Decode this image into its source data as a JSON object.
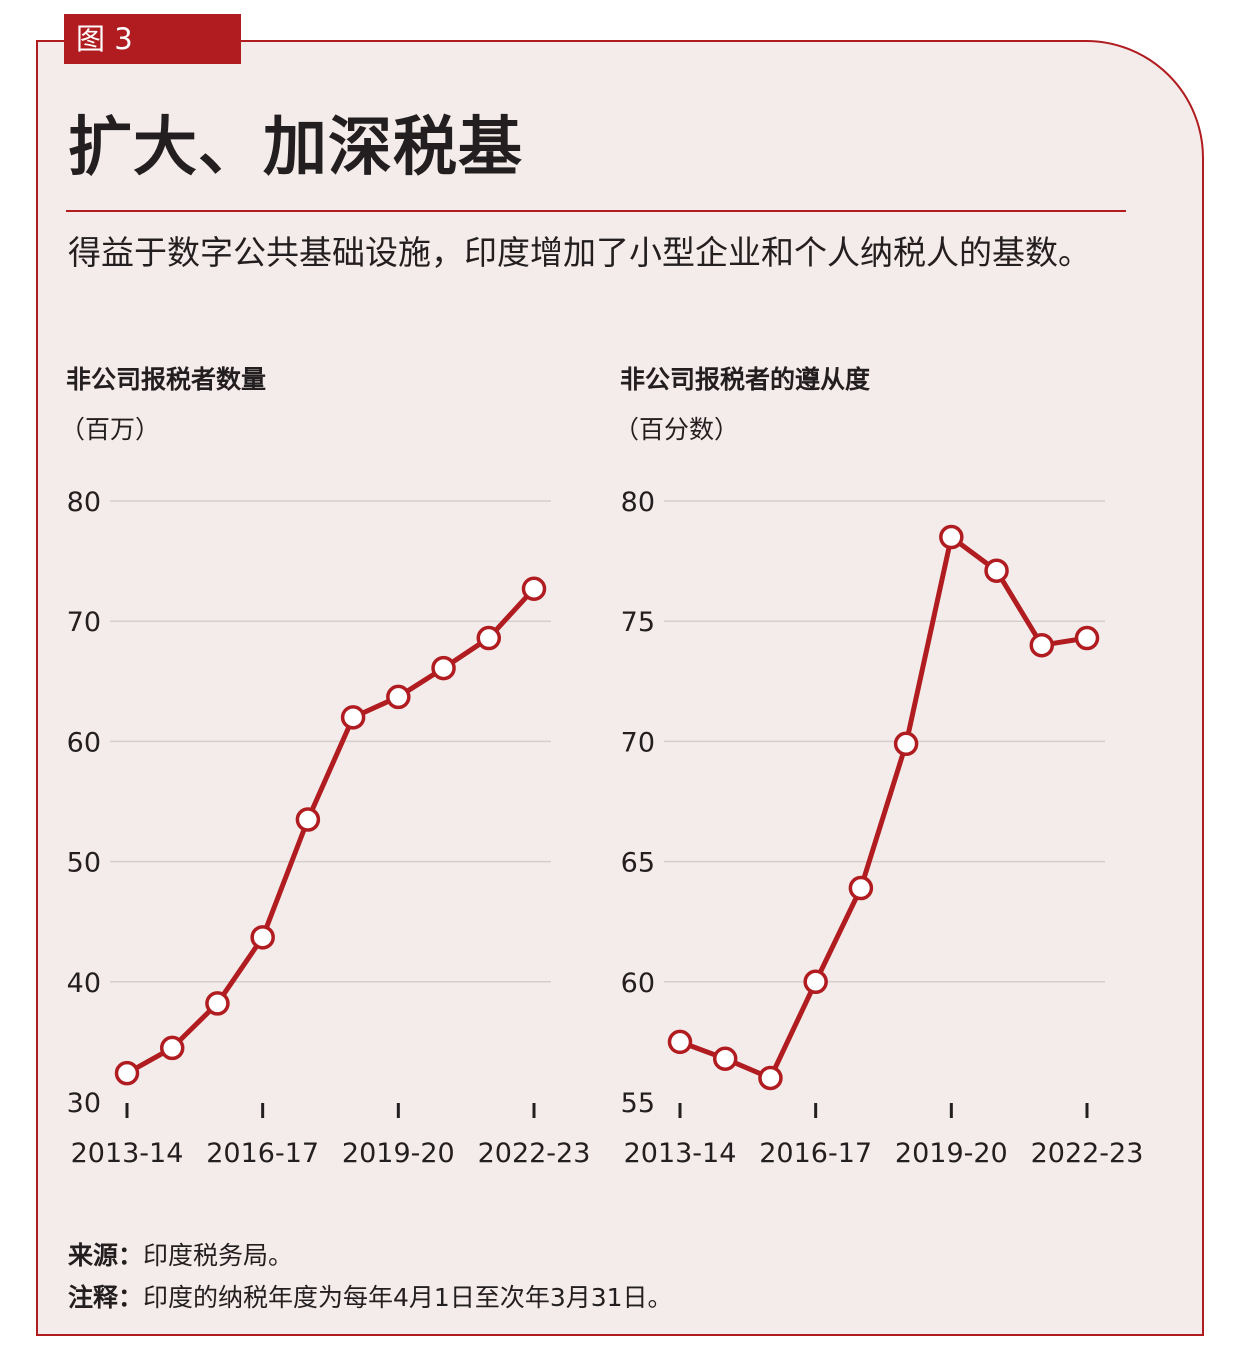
{
  "figure_tag": "图 3",
  "title": "扩大、加深税基",
  "subtitle": "得益于数字公共基础设施，印度增加了小型企业和个人纳税人的基数。",
  "colors": {
    "accent": "#b01c20",
    "background": "#f4ecea",
    "grid": "#d4cfcd",
    "text": "#231f20"
  },
  "chart_data": [
    {
      "type": "line",
      "title": "非公司报税者数量",
      "unit_label": "（百万）",
      "x": [
        "2013-14",
        "2014-15",
        "2015-16",
        "2016-17",
        "2017-18",
        "2018-19",
        "2019-20",
        "2020-21",
        "2021-22",
        "2022-23"
      ],
      "x_tick_labels": [
        "2013-14",
        "2016-17",
        "2019-20",
        "2022-23"
      ],
      "y_ticks": [
        80,
        70,
        60,
        50,
        40,
        30
      ],
      "ylim": [
        30,
        80
      ],
      "grid": true,
      "series": [
        {
          "values": [
            32.4,
            34.5,
            38.2,
            43.7,
            53.5,
            62.0,
            63.7,
            66.1,
            68.6,
            72.7
          ]
        }
      ]
    },
    {
      "type": "line",
      "title": "非公司报税者的遵从度",
      "unit_label": "（百分数）",
      "x": [
        "2013-14",
        "2014-15",
        "2015-16",
        "2016-17",
        "2017-18",
        "2018-19",
        "2019-20",
        "2020-21",
        "2021-22",
        "2022-23"
      ],
      "x_tick_labels": [
        "2013-14",
        "2016-17",
        "2019-20",
        "2022-23"
      ],
      "y_ticks": [
        80,
        75,
        70,
        65,
        60,
        55
      ],
      "ylim": [
        55,
        80
      ],
      "grid": true,
      "series": [
        {
          "values": [
            57.5,
            56.8,
            56.0,
            60.0,
            63.9,
            69.9,
            78.5,
            77.1,
            74.0,
            74.3
          ]
        }
      ]
    }
  ],
  "footer": {
    "source_label": "来源：",
    "source_text": "印度税务局。",
    "note_label": "注释：",
    "note_text": "印度的纳税年度为每年4月1日至次年3月31日。"
  }
}
